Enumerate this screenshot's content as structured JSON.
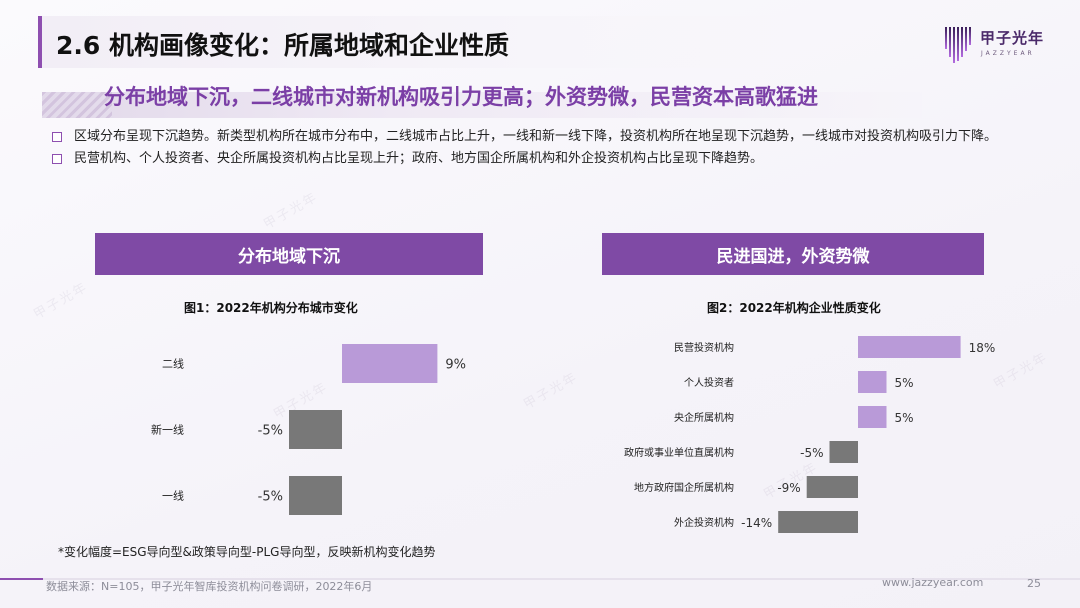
{
  "header": {
    "title": "2.6 机构画像变化：所属地域和企业性质",
    "logo_cn": "甲子光年",
    "logo_en": "JAZZYEAR"
  },
  "subheading": "分布地域下沉，二线城市对新机构吸引力更高；外资势微，民营资本高歌猛进",
  "bullets": [
    "区域分布呈现下沉趋势。新类型机构所在城市分布中，二线城市占比上升，一线和新一线下降，投资机构所在地呈现下沉趋势，一线城市对投资机构吸引力下降。",
    "民营机构、个人投资者、央企所属投资机构占比呈现上升；政府、地方国企所属机构和外企投资机构占比呈现下降趋势。"
  ],
  "left_panel": {
    "header": "分布地域下沉",
    "figure_title": "图1：2022年机构分布城市变化"
  },
  "right_panel": {
    "header": "民进国进，外资势微",
    "figure_title": "图2：2022年机构企业性质变化"
  },
  "chart_data": [
    {
      "type": "bar",
      "orientation": "horizontal",
      "title": "图1：2022年机构分布城市变化",
      "categories": [
        "二线",
        "新一线",
        "一线"
      ],
      "values": [
        9,
        -5,
        -5
      ],
      "value_labels": [
        "9%",
        "-5%",
        "-5%"
      ],
      "unit": "%",
      "grid": false,
      "legend": "none"
    },
    {
      "type": "bar",
      "orientation": "horizontal",
      "title": "图2：2022年机构企业性质变化",
      "categories": [
        "民营投资机构",
        "个人投资者",
        "央企所属机构",
        "政府或事业单位直属机构",
        "地方政府国企所属机构",
        "外企投资机构"
      ],
      "values": [
        18,
        5,
        5,
        -5,
        -9,
        -14
      ],
      "value_labels": [
        "18%",
        "5%",
        "5%",
        "-5%",
        "-9%",
        "-14%"
      ],
      "unit": "%",
      "grid": false,
      "legend": "none"
    }
  ],
  "colors": {
    "accent": "#7f4aa5",
    "positive_bar": "#b99ad8",
    "negative_bar": "#787878"
  },
  "footnote": "*变化幅度=ESG导向型&政策导向型-PLG导向型，反映新机构变化趋势",
  "footer": {
    "source": "数据来源：N=105，甲子光年智库投资机构问卷调研，2022年6月",
    "url": "www.jazzyear.com",
    "page": "25"
  }
}
